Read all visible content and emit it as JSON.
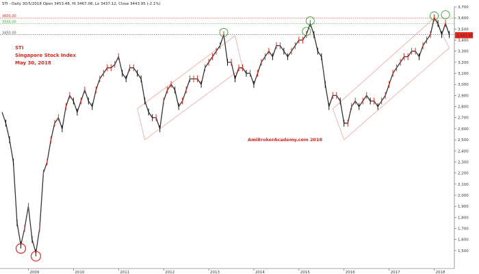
{
  "window": {
    "header": "STI - Daily 30/5/2018 Open 3453.48, Hi 3467.08, Lo 3437.12, Close 3443.95 (-2.1%)"
  },
  "annotation": {
    "line1": "STI",
    "line2": "Singapore Stock Index",
    "line3": "May 30, 2018",
    "watermark": "AmiBrokerAcademy.com  2018"
  },
  "levels": [
    {
      "label": "3600.00",
      "value": 3600,
      "color": "#e8261a",
      "style": "dotted"
    },
    {
      "label": "3550.00",
      "value": 3550,
      "color": "#2aa52a",
      "style": "dotted"
    },
    {
      "label": "3450.00",
      "value": 3450,
      "color": "#555555",
      "style": "dotted"
    }
  ],
  "last_price": {
    "label": "3,443.95",
    "value": 3443.95,
    "color": "#e8261a"
  },
  "colors": {
    "up": "#e8261a",
    "down": "#111111",
    "channel": "#f2a0a0",
    "circle_low": "#e8261a",
    "circle_high": "#2aa52a",
    "price_line": "#333333"
  },
  "chart_data": {
    "type": "line",
    "title": "STI",
    "ylim": [
      1400,
      3700
    ],
    "grid": false,
    "y_ticks": [
      1500,
      1600,
      1700,
      1800,
      1900,
      2000,
      2100,
      2200,
      2300,
      2400,
      2500,
      2600,
      2700,
      2800,
      2900,
      3000,
      3100,
      3200,
      3300,
      3400,
      3500,
      3600,
      3700
    ],
    "y_tick_labels": [
      "1,500",
      "1,600",
      "1,700",
      "1,800",
      "1,900",
      "2,000",
      "2,100",
      "2,200",
      "2,300",
      "2,400",
      "2,500",
      "2,600",
      "2,700",
      "2,800",
      "2,900",
      "3,000",
      "3,100",
      "3,200",
      "3,300",
      "3,400",
      "3,500",
      "3,600",
      "3,700"
    ],
    "x_ticks": [
      {
        "label": "2009",
        "date": "2009-01"
      },
      {
        "label": "2010",
        "date": "2010-01"
      },
      {
        "label": "2011",
        "date": "2011-01"
      },
      {
        "label": "2012",
        "date": "2012-01"
      },
      {
        "label": "2013",
        "date": "2013-01"
      },
      {
        "label": "2014",
        "date": "2014-01"
      },
      {
        "label": "2015",
        "date": "2015-01"
      },
      {
        "label": "2016",
        "date": "2016-01"
      },
      {
        "label": "2017",
        "date": "2017-01"
      },
      {
        "label": "2018",
        "date": "2018-01"
      }
    ],
    "series": [
      {
        "values_x": [
          "2008-06",
          "2008-07",
          "2008-08",
          "2008-09",
          "2008-10",
          "2008-11",
          "2008-12",
          "2009-01",
          "2009-02",
          "2009-03",
          "2009-04",
          "2009-05",
          "2009-06",
          "2009-07",
          "2009-08",
          "2009-09",
          "2009-10",
          "2009-11",
          "2009-12",
          "2010-01",
          "2010-02",
          "2010-03",
          "2010-04",
          "2010-05",
          "2010-06",
          "2010-07",
          "2010-08",
          "2010-09",
          "2010-10",
          "2010-11",
          "2010-12",
          "2011-01",
          "2011-02",
          "2011-03",
          "2011-04",
          "2011-05",
          "2011-06",
          "2011-07",
          "2011-08",
          "2011-09",
          "2011-10",
          "2011-11",
          "2011-12",
          "2012-01",
          "2012-02",
          "2012-03",
          "2012-04",
          "2012-05",
          "2012-06",
          "2012-07",
          "2012-08",
          "2012-09",
          "2012-10",
          "2012-11",
          "2012-12",
          "2013-01",
          "2013-02",
          "2013-03",
          "2013-04",
          "2013-05",
          "2013-06",
          "2013-07",
          "2013-08",
          "2013-09",
          "2013-10",
          "2013-11",
          "2013-12",
          "2014-01",
          "2014-02",
          "2014-03",
          "2014-04",
          "2014-05",
          "2014-06",
          "2014-07",
          "2014-08",
          "2014-09",
          "2014-10",
          "2014-11",
          "2014-12",
          "2015-01",
          "2015-02",
          "2015-03",
          "2015-04",
          "2015-05",
          "2015-06",
          "2015-07",
          "2015-08",
          "2015-09",
          "2015-10",
          "2015-11",
          "2015-12",
          "2016-01",
          "2016-02",
          "2016-03",
          "2016-04",
          "2016-05",
          "2016-06",
          "2016-07",
          "2016-08",
          "2016-09",
          "2016-10",
          "2016-11",
          "2016-12",
          "2017-01",
          "2017-02",
          "2017-03",
          "2017-04",
          "2017-05",
          "2017-06",
          "2017-07",
          "2017-08",
          "2017-09",
          "2017-10",
          "2017-11",
          "2017-12",
          "2018-01",
          "2018-02",
          "2018-03",
          "2018-04",
          "2018-05"
        ],
        "values_y": [
          2750,
          2650,
          2500,
          2300,
          1750,
          1550,
          1700,
          1900,
          1600,
          1480,
          1700,
          2200,
          2300,
          2500,
          2650,
          2700,
          2600,
          2800,
          2900,
          2850,
          2750,
          2850,
          2950,
          2850,
          2800,
          2950,
          3050,
          3100,
          3150,
          3150,
          3180,
          3250,
          3100,
          3050,
          3150,
          3150,
          3100,
          3050,
          2850,
          2750,
          2700,
          2700,
          2600,
          2850,
          2950,
          3000,
          2950,
          2800,
          2850,
          2950,
          3050,
          3050,
          3050,
          3000,
          3150,
          3200,
          3250,
          3300,
          3350,
          3450,
          3200,
          3200,
          3050,
          3150,
          3150,
          3100,
          3100,
          3000,
          3100,
          3200,
          3250,
          3300,
          3250,
          3350,
          3350,
          3300,
          3250,
          3300,
          3350,
          3400,
          3400,
          3450,
          3550,
          3450,
          3300,
          3250,
          3000,
          2800,
          2900,
          2900,
          2850,
          2650,
          2650,
          2800,
          2850,
          2800,
          2850,
          2900,
          2850,
          2850,
          2800,
          2850,
          2900,
          3000,
          3100,
          3150,
          3200,
          3250,
          3250,
          3300,
          3300,
          3250,
          3350,
          3400,
          3450,
          3600,
          3550,
          3450,
          3550,
          3450
        ]
      }
    ],
    "annotations": {
      "low_circles": [
        {
          "date": "2008-11",
          "value": 1550
        },
        {
          "date": "2009-03",
          "value": 1480
        }
      ],
      "high_circles": [
        {
          "date": "2013-05",
          "value": 3450
        },
        {
          "date": "2015-03",
          "value": 3460
        },
        {
          "date": "2015-04",
          "value": 3555
        },
        {
          "date": "2018-01",
          "value": 3600
        },
        {
          "date": "2018-04",
          "value": 3610
        }
      ],
      "channels": [
        {
          "lower_start": [
            "2011-08",
            2500
          ],
          "lower_end": [
            "2013-10",
            3150
          ],
          "upper_start": [
            "2011-06",
            2780
          ],
          "upper_end": [
            "2013-08",
            3440
          ]
        },
        {
          "lower_start": [
            "2016-01",
            2500
          ],
          "lower_end": [
            "2018-05",
            3330
          ],
          "upper_start": [
            "2015-10",
            2780
          ],
          "upper_end": [
            "2018-01",
            3600
          ]
        }
      ]
    }
  }
}
